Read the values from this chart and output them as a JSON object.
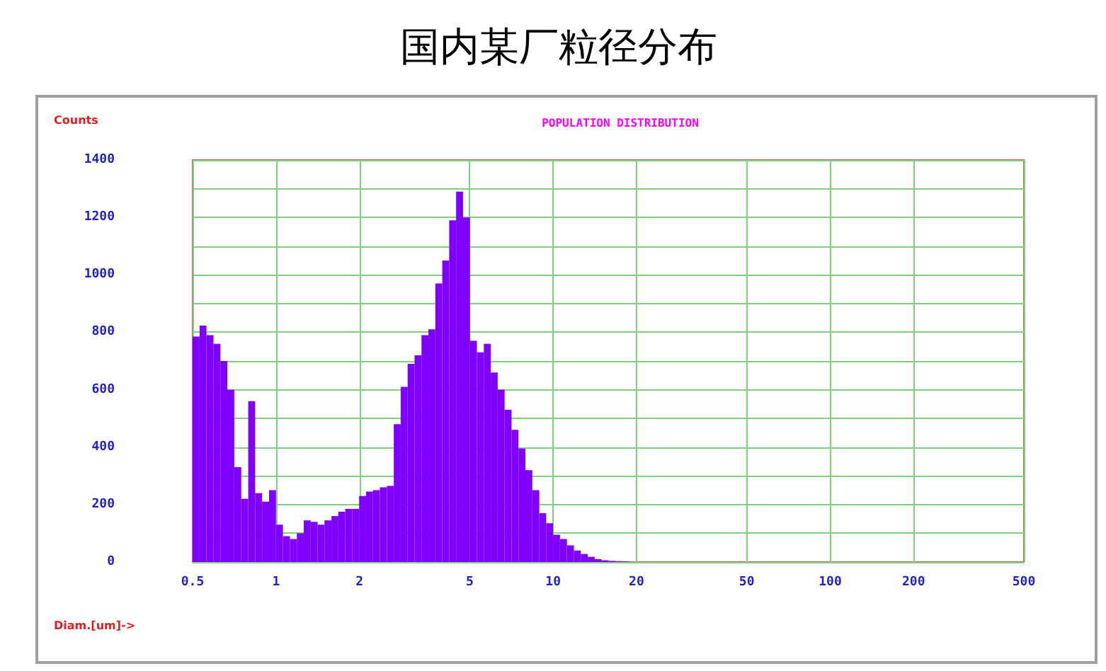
{
  "chart_data": {
    "type": "histogram",
    "title": "国内某厂粒径分布",
    "subtitle": "POPULATION DISTRIBUTION",
    "xlabel": "Diam.[um]->",
    "ylabel": "Counts",
    "color": "#8000ff",
    "log": "x",
    "grid": true,
    "bins": [
      0.5,
      0.53,
      0.561,
      0.595,
      0.63,
      0.667,
      0.707,
      0.749,
      0.794,
      0.841,
      0.891,
      0.944,
      1.0,
      1.059,
      1.122,
      1.189,
      1.259,
      1.334,
      1.413,
      1.496,
      1.585,
      1.679,
      1.778,
      1.884,
      1.995,
      2.113,
      2.239,
      2.371,
      2.512,
      2.661,
      2.818,
      2.985,
      3.162,
      3.35,
      3.548,
      3.758,
      3.981,
      4.217,
      4.467,
      4.732,
      5.012,
      5.309,
      5.623,
      5.957,
      6.31,
      6.683,
      7.079,
      7.499,
      7.943,
      8.414,
      8.913,
      9.441,
      10.0,
      10.59,
      11.22,
      11.89,
      12.59,
      13.34,
      14.13,
      14.96,
      15.85,
      16.79,
      17.78,
      18.84,
      19.95,
      21.13
    ],
    "values": [
      785,
      823,
      790,
      760,
      700,
      600,
      330,
      220,
      560,
      240,
      210,
      250,
      130,
      90,
      80,
      100,
      145,
      140,
      130,
      145,
      160,
      175,
      185,
      185,
      230,
      245,
      250,
      260,
      265,
      480,
      610,
      690,
      720,
      790,
      810,
      970,
      1050,
      1190,
      1290,
      1200,
      770,
      730,
      760,
      660,
      600,
      530,
      460,
      395,
      320,
      250,
      170,
      135,
      95,
      80,
      58,
      40,
      28,
      18,
      10,
      6,
      4,
      3,
      2,
      null,
      null
    ],
    "xlim": [
      0.5,
      500
    ],
    "xticks": [
      0.5,
      1,
      2,
      5,
      10,
      20,
      50,
      100,
      200,
      500
    ],
    "ylim": [
      0,
      1400
    ],
    "yticks": [
      0,
      {
        "value": 100,
        "label": null
      },
      200,
      {
        "value": 300,
        "label": null
      },
      400,
      {
        "value": 500,
        "label": null
      },
      600,
      {
        "value": 700,
        "label": null
      },
      800,
      {
        "value": 900,
        "label": null
      },
      1000,
      {
        "value": 1100,
        "label": null
      },
      1200,
      {
        "value": 1300,
        "label": null
      },
      1400
    ]
  }
}
